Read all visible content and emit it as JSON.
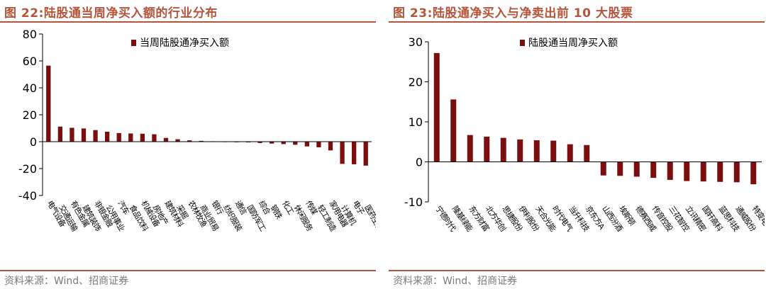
{
  "colors": {
    "bar": "#7b0f0f",
    "accent": "#b5543a",
    "source": "#7a7a7a"
  },
  "chart_data": [
    {
      "type": "bar",
      "figure_label": "图 22:",
      "title": "陆股通当周净买入额的行业分布",
      "legend": "当周陆股通净买入额",
      "legend_position": "top-right",
      "ylim": [
        -40,
        80
      ],
      "yticks": [
        80,
        60,
        40,
        20,
        0,
        -20,
        -40
      ],
      "categories": [
        "电气设备",
        "交通运输",
        "有色金属",
        "建筑装饰",
        "非银金融",
        "公用事业",
        "汽车",
        "食品饮料",
        "机械设备",
        "房地产",
        "建筑材料",
        "采掘",
        "农林牧渔",
        "商业贸易",
        "银行",
        "纺织服装",
        "通信",
        "国防军工",
        "综合",
        "钢铁",
        "化工",
        "休闲服务",
        "传媒",
        "轻工制造",
        "家用电器",
        "计算机",
        "电子",
        "医药生物"
      ],
      "values": [
        56.5,
        11.2,
        10.3,
        9.8,
        8.6,
        7.4,
        6.4,
        6.1,
        5.9,
        5.5,
        2.8,
        1.8,
        1.0,
        0.6,
        0.3,
        0.1,
        -0.2,
        -0.5,
        -1.0,
        -1.4,
        -1.8,
        -2.3,
        -3.5,
        -4.2,
        -6.5,
        -16.5,
        -16.8,
        -17.8
      ],
      "source": "资料来源：Wind、招商证券"
    },
    {
      "type": "bar",
      "figure_label": "图 23:",
      "title": "陆股通净买入与净卖出前 10 大股票",
      "legend": "陆股通当周净买入额",
      "legend_position": "top-right",
      "ylim": [
        -10,
        30
      ],
      "yticks": [
        30,
        20,
        10,
        0,
        -10
      ],
      "categories": [
        "宁德时代",
        "隆基绿能",
        "东方财富",
        "北方华创",
        "思捷股份",
        "伊利股份",
        "天合光能",
        "时代电气",
        "当升科技",
        "京东方A",
        "山西汾酒",
        "埃斯顿",
        "德赛西威",
        "传音控股",
        "三花智控",
        "立讯精密",
        "国轩高科",
        "蓝思科技",
        "通威股份",
        "特变电工"
      ],
      "values": [
        27.2,
        15.6,
        6.7,
        6.3,
        6.0,
        5.6,
        5.4,
        5.3,
        4.4,
        4.2,
        -3.4,
        -3.5,
        -3.7,
        -4.0,
        -4.5,
        -4.8,
        -4.9,
        -5.0,
        -5.1,
        -5.6
      ],
      "source": "资料来源：Wind、招商证券"
    }
  ]
}
